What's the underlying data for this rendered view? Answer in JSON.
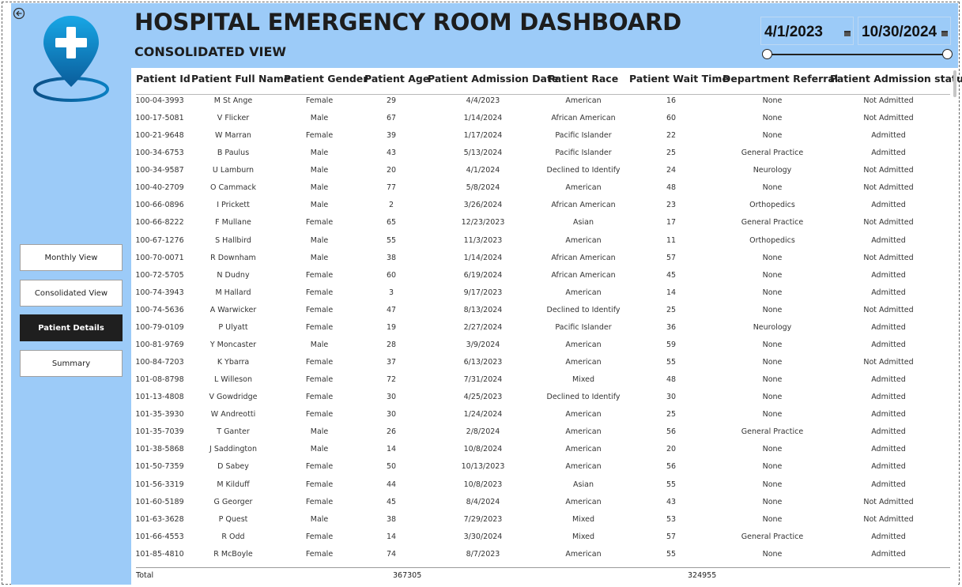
{
  "header": {
    "title": "HOSPITAL EMERGENCY ROOM DASHBOARD",
    "subtitle": "CONSOLIDATED VIEW"
  },
  "date_filter": {
    "start": "4/1/2023",
    "end": "10/30/2024"
  },
  "nav": [
    {
      "label": "Monthly View",
      "active": false
    },
    {
      "label": "Consolidated View",
      "active": false
    },
    {
      "label": "Patient Details",
      "active": true
    },
    {
      "label": "Summary",
      "active": false
    }
  ],
  "table": {
    "columns": [
      "Patient Id",
      "Patient Full Name",
      "Patient Gender",
      "Patient Age",
      "Patient Admission Date",
      "Patient Race",
      "Patient Wait Time",
      "Department Referral",
      "Patient Admission status"
    ],
    "rows": [
      [
        "100-04-3993",
        "M St Ange",
        "Female",
        "29",
        "4/4/2023",
        "American",
        "16",
        "None",
        "Not Admitted"
      ],
      [
        "100-17-5081",
        "V Flicker",
        "Male",
        "67",
        "1/14/2024",
        "African American",
        "60",
        "None",
        "Not Admitted"
      ],
      [
        "100-21-9648",
        "W Marran",
        "Female",
        "39",
        "1/17/2024",
        "Pacific Islander",
        "22",
        "None",
        "Admitted"
      ],
      [
        "100-34-6753",
        "B Paulus",
        "Male",
        "43",
        "5/13/2024",
        "Pacific Islander",
        "25",
        "General Practice",
        "Admitted"
      ],
      [
        "100-34-9587",
        "U Lamburn",
        "Male",
        "20",
        "4/1/2024",
        "Declined to Identify",
        "24",
        "Neurology",
        "Not Admitted"
      ],
      [
        "100-40-2709",
        "O Cammack",
        "Male",
        "77",
        "5/8/2024",
        "American",
        "48",
        "None",
        "Not Admitted"
      ],
      [
        "100-66-0896",
        "I Prickett",
        "Male",
        "2",
        "3/26/2024",
        "African American",
        "23",
        "Orthopedics",
        "Admitted"
      ],
      [
        "100-66-8222",
        "F Mullane",
        "Female",
        "65",
        "12/23/2023",
        "Asian",
        "17",
        "General Practice",
        "Not Admitted"
      ],
      [
        "100-67-1276",
        "S Hallbird",
        "Male",
        "55",
        "11/3/2023",
        "American",
        "11",
        "Orthopedics",
        "Admitted"
      ],
      [
        "100-70-0071",
        "R Downham",
        "Male",
        "38",
        "1/14/2024",
        "African American",
        "57",
        "None",
        "Not Admitted"
      ],
      [
        "100-72-5705",
        "N Dudny",
        "Female",
        "60",
        "6/19/2024",
        "African American",
        "45",
        "None",
        "Admitted"
      ],
      [
        "100-74-3943",
        "M Hallard",
        "Female",
        "3",
        "9/17/2023",
        "American",
        "14",
        "None",
        "Admitted"
      ],
      [
        "100-74-5636",
        "A Warwicker",
        "Female",
        "47",
        "8/13/2024",
        "Declined to Identify",
        "25",
        "None",
        "Not Admitted"
      ],
      [
        "100-79-0109",
        "P Ulyatt",
        "Female",
        "19",
        "2/27/2024",
        "Pacific Islander",
        "36",
        "Neurology",
        "Admitted"
      ],
      [
        "100-81-9769",
        "Y Moncaster",
        "Male",
        "28",
        "3/9/2024",
        "American",
        "59",
        "None",
        "Admitted"
      ],
      [
        "100-84-7203",
        "K Ybarra",
        "Female",
        "37",
        "6/13/2023",
        "American",
        "55",
        "None",
        "Not Admitted"
      ],
      [
        "101-08-8798",
        "L Willeson",
        "Female",
        "72",
        "7/31/2024",
        "Mixed",
        "48",
        "None",
        "Admitted"
      ],
      [
        "101-13-4808",
        "V Gowdridge",
        "Female",
        "30",
        "4/25/2023",
        "Declined to Identify",
        "30",
        "None",
        "Admitted"
      ],
      [
        "101-35-3930",
        "W Andreotti",
        "Female",
        "30",
        "1/24/2024",
        "American",
        "25",
        "None",
        "Admitted"
      ],
      [
        "101-35-7039",
        "T Ganter",
        "Male",
        "26",
        "2/8/2024",
        "American",
        "56",
        "General Practice",
        "Admitted"
      ],
      [
        "101-38-5868",
        "J Saddington",
        "Male",
        "14",
        "10/8/2024",
        "American",
        "20",
        "None",
        "Admitted"
      ],
      [
        "101-50-7359",
        "D Sabey",
        "Female",
        "50",
        "10/13/2023",
        "American",
        "56",
        "None",
        "Admitted"
      ],
      [
        "101-56-3319",
        "M Kilduff",
        "Female",
        "44",
        "10/8/2023",
        "Asian",
        "55",
        "None",
        "Admitted"
      ],
      [
        "101-60-5189",
        "G Georger",
        "Female",
        "45",
        "8/4/2024",
        "American",
        "43",
        "None",
        "Not Admitted"
      ],
      [
        "101-63-3628",
        "P Quest",
        "Male",
        "38",
        "7/29/2023",
        "Mixed",
        "53",
        "None",
        "Not Admitted"
      ],
      [
        "101-66-4553",
        "R Odd",
        "Female",
        "14",
        "3/30/2024",
        "Mixed",
        "57",
        "General Practice",
        "Admitted"
      ],
      [
        "101-85-4810",
        "R McBoyle",
        "Female",
        "74",
        "8/7/2023",
        "American",
        "55",
        "None",
        "Admitted"
      ]
    ],
    "total": {
      "label": "Total",
      "age_sum": "367305",
      "wait_sum": "324955"
    }
  },
  "colors": {
    "panel": "#9ccbf8",
    "active_button": "#1f1f1f",
    "logo_blue": "#0a7fc2"
  },
  "icons": {
    "back": "back-arrow-icon",
    "logo": "location-pin-medical-cross-icon",
    "calendar": "calendar-icon"
  }
}
